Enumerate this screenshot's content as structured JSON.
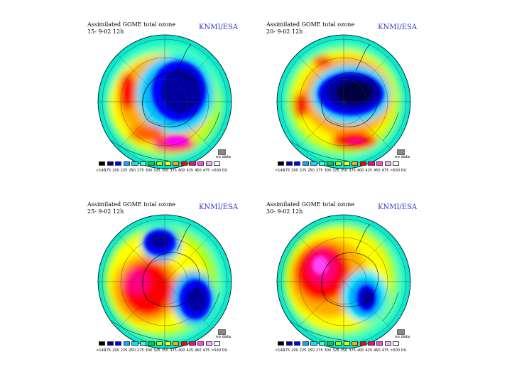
{
  "brand": "KNMI/ESA",
  "title": "Assimilated GOME total ozone",
  "no_data_label": "no data",
  "no_data_color": "#888888",
  "legend": {
    "labels": [
      "<140",
      "175",
      "200",
      "225",
      "250",
      "275",
      "300",
      "325",
      "350",
      "375",
      "400",
      "425",
      "450",
      "475",
      ">500 DU"
    ],
    "colors": [
      "#000000",
      "#0000a0",
      "#0000ff",
      "#00b0ff",
      "#00e5ff",
      "#40ffc0",
      "#00cc44",
      "#a0ff00",
      "#ffff00",
      "#ffaa00",
      "#ff0000",
      "#ff0080",
      "#ff44ff",
      "#ffaaff",
      "#ffffff"
    ]
  },
  "panels": [
    {
      "date": "15- 9-02 12h"
    },
    {
      "date": "20- 9-02 12h"
    },
    {
      "date": "25- 9-02 12h"
    },
    {
      "date": "30- 9-02 12h"
    }
  ]
}
